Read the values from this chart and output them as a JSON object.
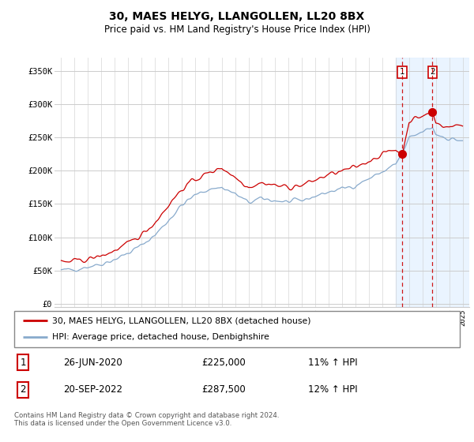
{
  "title": "30, MAES HELYG, LLANGOLLEN, LL20 8BX",
  "subtitle": "Price paid vs. HM Land Registry's House Price Index (HPI)",
  "ylabel_ticks": [
    "£0",
    "£50K",
    "£100K",
    "£150K",
    "£200K",
    "£250K",
    "£300K",
    "£350K"
  ],
  "ytick_values": [
    0,
    50000,
    100000,
    150000,
    200000,
    250000,
    300000,
    350000
  ],
  "ylim": [
    -5000,
    370000
  ],
  "legend_line1": "30, MAES HELYG, LLANGOLLEN, LL20 8BX (detached house)",
  "legend_line2": "HPI: Average price, detached house, Denbighshire",
  "transaction1_date": "26-JUN-2020",
  "transaction1_price": "£225,000",
  "transaction1_hpi": "11% ↑ HPI",
  "transaction2_date": "20-SEP-2022",
  "transaction2_price": "£287,500",
  "transaction2_hpi": "12% ↑ HPI",
  "footnote": "Contains HM Land Registry data © Crown copyright and database right 2024.\nThis data is licensed under the Open Government Licence v3.0.",
  "red_color": "#cc0000",
  "blue_color": "#88aacc",
  "highlight_color": "#ddeeff",
  "grid_color": "#cccccc",
  "vline1_x": 2020.5,
  "vline2_x": 2022.75,
  "dot1_y": 225000,
  "dot2_y": 287500,
  "highlight_x_start": 2020.0,
  "highlight_x_end": 2025.5,
  "xlim_left": 1994.5,
  "xlim_right": 2025.5
}
